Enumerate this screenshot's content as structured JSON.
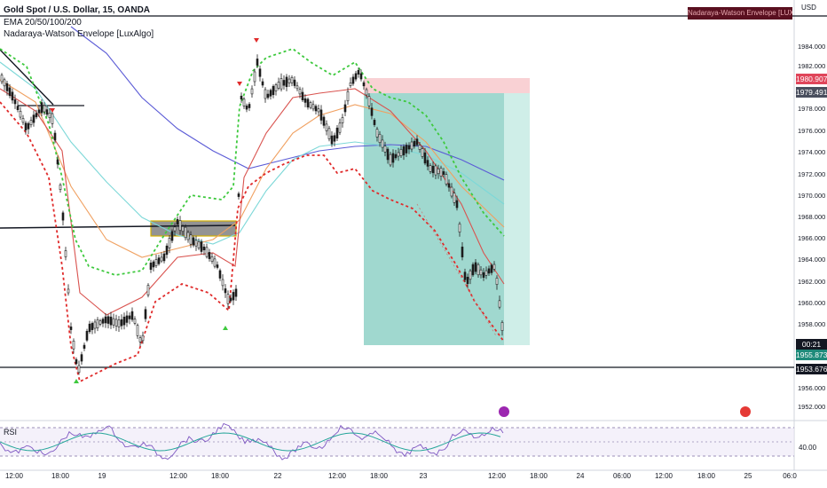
{
  "header": {
    "symbol_line": "Gold Spot / U.S. Dollar, 15, OANDA",
    "indicator_1": "EMA 20/50/100/200",
    "indicator_2": "Nadaraya-Watson Envelope [LuxAlgo]",
    "warning": "Nadaraya-Watson Envelope [LUX] Repaints",
    "currency": "USD"
  },
  "price_tags": {
    "upper_band": "1980.907",
    "ema": "1979.491",
    "countdown": "00:21",
    "last_price": "1955.873",
    "support": "1953.676"
  },
  "colors": {
    "bull": "#26a69a",
    "stop": "#f7c6c9",
    "target": "#9bd6cc",
    "upper_env": "#3ec93e",
    "lower_env": "#e02b2b",
    "ema20": "#d9534f",
    "ema50": "#f0a060",
    "ema100": "#7dd8d8",
    "ema200": "#5b5bd6"
  },
  "y_axis": [
    "1984.000",
    "1982.000",
    "1980.000",
    "1978.000",
    "1976.000",
    "1974.000",
    "1972.000",
    "1970.000",
    "1968.000",
    "1966.000",
    "1964.000",
    "1962.000",
    "1960.000",
    "1958.000",
    "1956.000",
    "1952.000",
    "1950.000",
    "1948.000"
  ],
  "x_axis": [
    "12:00",
    "18:00",
    "19",
    "12:00",
    "18:00",
    "22",
    "12:00",
    "18:00",
    "23",
    "12:00",
    "18:00",
    "24",
    "06:00",
    "12:00",
    "18:00",
    "25",
    "06:0"
  ],
  "rsi": {
    "label": "RSI",
    "level": "40.00"
  }
}
